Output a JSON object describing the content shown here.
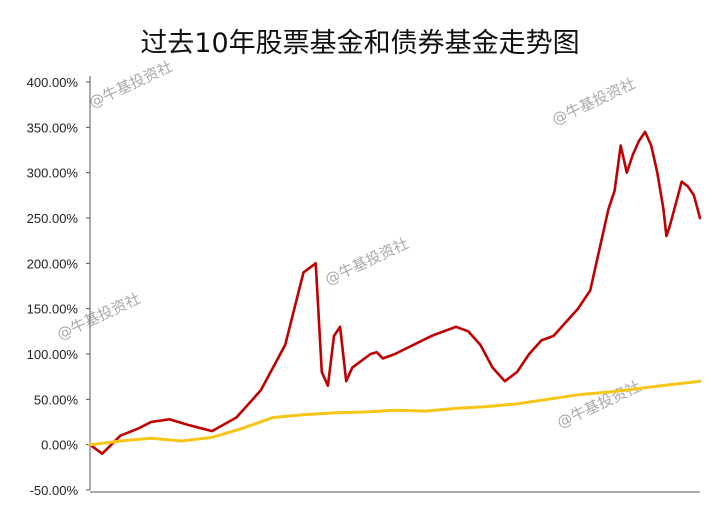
{
  "chart_data": {
    "type": "line",
    "title": "过去10年股票基金和债券基金走势图",
    "xlabel": "",
    "ylabel": "",
    "ylim": [
      -50,
      400
    ],
    "y_ticks": [
      "400.00%",
      "350.00%",
      "300.00%",
      "250.00%",
      "200.00%",
      "150.00%",
      "100.00%",
      "50.00%",
      "0.00%",
      "-50.00%"
    ],
    "grid": false,
    "legend": "none",
    "watermark": "@牛基投资社",
    "series": [
      {
        "color": "#c00000",
        "x": [
          0,
          0.02,
          0.05,
          0.08,
          0.1,
          0.13,
          0.16,
          0.2,
          0.24,
          0.28,
          0.32,
          0.35,
          0.37,
          0.38,
          0.39,
          0.4,
          0.41,
          0.42,
          0.43,
          0.44,
          0.45,
          0.46,
          0.47,
          0.48,
          0.5,
          0.53,
          0.56,
          0.6,
          0.62,
          0.64,
          0.66,
          0.68,
          0.7,
          0.72,
          0.74,
          0.76,
          0.78,
          0.8,
          0.82,
          0.84,
          0.85,
          0.86,
          0.87,
          0.88,
          0.89,
          0.9,
          0.91,
          0.92,
          0.93,
          0.94,
          0.945,
          0.95,
          0.96,
          0.97,
          0.98,
          0.99,
          1.0
        ],
        "values": [
          0,
          -10,
          10,
          18,
          25,
          28,
          22,
          15,
          30,
          60,
          110,
          190,
          200,
          80,
          65,
          120,
          130,
          70,
          85,
          90,
          95,
          100,
          102,
          95,
          100,
          110,
          120,
          130,
          125,
          110,
          85,
          70,
          80,
          100,
          115,
          120,
          135,
          150,
          170,
          230,
          260,
          280,
          330,
          300,
          320,
          335,
          345,
          330,
          300,
          260,
          230,
          240,
          265,
          290,
          285,
          275,
          250
        ]
      },
      {
        "color": "#f5c518",
        "x": [
          0,
          0.05,
          0.1,
          0.15,
          0.2,
          0.25,
          0.3,
          0.35,
          0.4,
          0.45,
          0.5,
          0.55,
          0.6,
          0.65,
          0.7,
          0.75,
          0.8,
          0.85,
          0.9,
          0.95,
          1.0
        ],
        "values": [
          0,
          4,
          7,
          4,
          8,
          18,
          30,
          33,
          35,
          36,
          38,
          37,
          40,
          42,
          45,
          50,
          55,
          58,
          62,
          66,
          70
        ]
      }
    ]
  }
}
